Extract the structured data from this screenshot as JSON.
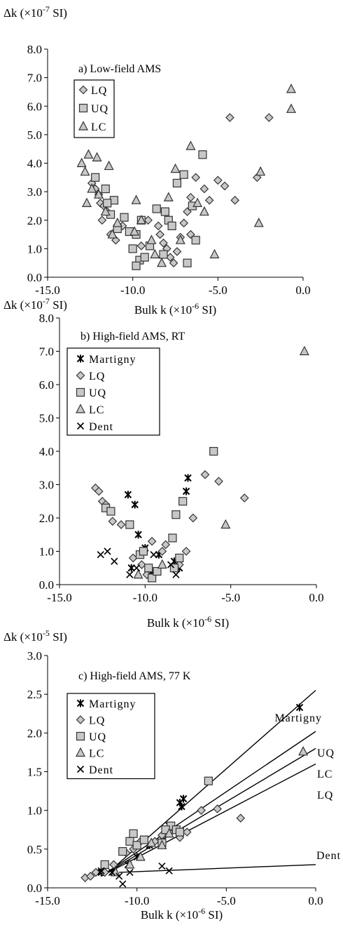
{
  "colors": {
    "fill_gray": "#c8c8c8",
    "stroke": "#333333",
    "line": "#000000"
  },
  "chart_data": [
    {
      "type": "scatter",
      "title": "a) Low-field AMS",
      "ylabel_prefix": "Δk (×10",
      "ylabel_exp": "-7",
      "ylabel_suffix": " SI)",
      "xlabel_prefix": "Bulk k (×10",
      "xlabel_exp": "-6",
      "xlabel_suffix": " SI)",
      "xlim": [
        -15,
        0
      ],
      "ylim": [
        0,
        8
      ],
      "xticks": [
        -15,
        -10,
        -5,
        0
      ],
      "xtick_labels": [
        "-15.0",
        "-10.0",
        "-5.0",
        "0.0"
      ],
      "yticks": [
        0,
        1,
        2,
        3,
        4,
        5,
        6,
        7,
        8
      ],
      "ytick_labels": [
        "0.0",
        "1.0",
        "2.0",
        "3.0",
        "4.0",
        "5.0",
        "6.0",
        "7.0",
        "8.0"
      ],
      "legend": "top-left",
      "series": [
        {
          "name": "LQ",
          "marker": "diamond",
          "points": [
            [
              -12.4,
              3.3
            ],
            [
              -12.2,
              3.1
            ],
            [
              -12.0,
              2.9
            ],
            [
              -11.9,
              2.6
            ],
            [
              -11.7,
              2.5
            ],
            [
              -11.5,
              2.3
            ],
            [
              -11.8,
              2.0
            ],
            [
              -11.3,
              1.5
            ],
            [
              -11.0,
              1.3
            ],
            [
              -10.6,
              1.8
            ],
            [
              -9.1,
              2.0
            ],
            [
              -8.5,
              1.8
            ],
            [
              -8.4,
              1.5
            ],
            [
              -8.2,
              1.2
            ],
            [
              -8.0,
              1.0
            ],
            [
              -7.8,
              0.7
            ],
            [
              -7.6,
              0.5
            ],
            [
              -7.4,
              0.9
            ],
            [
              -7.2,
              1.4
            ],
            [
              -7.0,
              1.9
            ],
            [
              -6.8,
              2.3
            ],
            [
              -6.6,
              2.8
            ],
            [
              -6.3,
              3.5
            ],
            [
              -5.8,
              3.1
            ],
            [
              -5.5,
              2.7
            ],
            [
              -5.0,
              3.4
            ],
            [
              -4.6,
              3.2
            ],
            [
              -4.0,
              2.7
            ],
            [
              -4.3,
              5.6
            ],
            [
              -2.0,
              5.6
            ],
            [
              -2.7,
              3.5
            ],
            [
              -6.6,
              1.5
            ],
            [
              -9.5,
              1.1
            ]
          ]
        },
        {
          "name": "UQ",
          "marker": "square",
          "points": [
            [
              -12.2,
              3.5
            ],
            [
              -11.6,
              3.1
            ],
            [
              -11.1,
              2.7
            ],
            [
              -11.3,
              2.2
            ],
            [
              -10.5,
              2.1
            ],
            [
              -10.9,
              1.7
            ],
            [
              -10.2,
              1.6
            ],
            [
              -9.8,
              1.5
            ],
            [
              -10.0,
              1.0
            ],
            [
              -9.6,
              0.6
            ],
            [
              -9.8,
              0.4
            ],
            [
              -9.3,
              0.7
            ],
            [
              -9.0,
              1.1
            ],
            [
              -8.6,
              2.4
            ],
            [
              -8.1,
              2.3
            ],
            [
              -7.9,
              2.0
            ],
            [
              -7.7,
              1.8
            ],
            [
              -7.4,
              3.3
            ],
            [
              -7.0,
              3.6
            ],
            [
              -6.5,
              2.5
            ],
            [
              -6.3,
              1.3
            ],
            [
              -6.8,
              0.5
            ],
            [
              -5.9,
              4.3
            ],
            [
              -9.5,
              2.0
            ],
            [
              -8.2,
              0.8
            ],
            [
              -11.5,
              2.6
            ]
          ]
        },
        {
          "name": "LC",
          "marker": "triangle",
          "points": [
            [
              -13.0,
              4.0
            ],
            [
              -12.6,
              4.3
            ],
            [
              -12.1,
              4.2
            ],
            [
              -12.8,
              3.7
            ],
            [
              -12.4,
              3.1
            ],
            [
              -12.0,
              2.9
            ],
            [
              -11.6,
              2.3
            ],
            [
              -11.2,
              1.5
            ],
            [
              -10.9,
              1.9
            ],
            [
              -11.4,
              3.9
            ],
            [
              -9.8,
              2.7
            ],
            [
              -9.5,
              2.0
            ],
            [
              -8.9,
              1.3
            ],
            [
              -8.7,
              0.8
            ],
            [
              -8.3,
              0.5
            ],
            [
              -7.9,
              2.8
            ],
            [
              -7.5,
              3.8
            ],
            [
              -7.2,
              1.3
            ],
            [
              -6.6,
              4.6
            ],
            [
              -6.2,
              2.6
            ],
            [
              -5.8,
              2.3
            ],
            [
              -5.2,
              0.8
            ],
            [
              -2.6,
              1.9
            ],
            [
              -2.5,
              3.7
            ],
            [
              -0.7,
              6.6
            ],
            [
              -0.7,
              5.9
            ],
            [
              -12.7,
              2.6
            ],
            [
              -9.9,
              1.6
            ]
          ]
        }
      ]
    },
    {
      "type": "scatter",
      "title": "b) High-field AMS, RT",
      "ylabel_prefix": "Δk (×10",
      "ylabel_exp": "-7",
      "ylabel_suffix": " SI)",
      "xlabel_prefix": "Bulk k (×10",
      "xlabel_exp": "-6",
      "xlabel_suffix": " SI)",
      "xlim": [
        -15,
        0
      ],
      "ylim": [
        0,
        8
      ],
      "xticks": [
        -15,
        -10,
        -5,
        0
      ],
      "xtick_labels": [
        "-15.0",
        "-10.0",
        "-5.0",
        "0.0"
      ],
      "yticks": [
        0,
        1,
        2,
        3,
        4,
        5,
        6,
        7,
        8
      ],
      "ytick_labels": [
        "0.0",
        "1.0",
        "2.0",
        "3.0",
        "4.0",
        "5.0",
        "6.0",
        "7.0",
        "8.0"
      ],
      "legend": "top-left",
      "series": [
        {
          "name": "Martigny",
          "marker": "star",
          "points": [
            [
              -11.0,
              2.7
            ],
            [
              -10.6,
              2.4
            ],
            [
              -10.4,
              1.5
            ],
            [
              -10.0,
              1.1
            ],
            [
              -9.6,
              0.4
            ],
            [
              -7.6,
              2.8
            ],
            [
              -7.5,
              3.2
            ],
            [
              -8.3,
              0.7
            ],
            [
              -8.0,
              0.5
            ],
            [
              -9.2,
              0.9
            ],
            [
              -10.8,
              0.5
            ]
          ]
        },
        {
          "name": "LQ",
          "marker": "diamond",
          "points": [
            [
              -12.9,
              2.9
            ],
            [
              -12.7,
              2.8
            ],
            [
              -12.5,
              2.5
            ],
            [
              -12.3,
              2.4
            ],
            [
              -11.9,
              1.9
            ],
            [
              -11.4,
              1.8
            ],
            [
              -10.7,
              0.8
            ],
            [
              -10.2,
              0.6
            ],
            [
              -9.6,
              1.3
            ],
            [
              -9.0,
              1.0
            ],
            [
              -8.8,
              1.2
            ],
            [
              -8.0,
              0.6
            ],
            [
              -7.6,
              1.0
            ],
            [
              -7.2,
              2.0
            ],
            [
              -6.5,
              3.3
            ],
            [
              -5.7,
              3.1
            ],
            [
              -4.2,
              2.6
            ],
            [
              -9.9,
              0.3
            ]
          ]
        },
        {
          "name": "UQ",
          "marker": "square",
          "points": [
            [
              -12.3,
              2.3
            ],
            [
              -12.0,
              2.2
            ],
            [
              -10.9,
              1.8
            ],
            [
              -10.3,
              0.9
            ],
            [
              -10.1,
              1.0
            ],
            [
              -9.8,
              0.5
            ],
            [
              -9.6,
              0.2
            ],
            [
              -9.3,
              0.4
            ],
            [
              -8.4,
              1.4
            ],
            [
              -8.2,
              2.1
            ],
            [
              -8.0,
              0.8
            ],
            [
              -7.8,
              2.5
            ],
            [
              -6.0,
              4.0
            ],
            [
              -8.3,
              0.5
            ]
          ]
        },
        {
          "name": "LC",
          "marker": "triangle",
          "points": [
            [
              -10.4,
              0.3
            ],
            [
              -9.0,
              0.6
            ],
            [
              -5.3,
              1.8
            ],
            [
              -0.7,
              7.0
            ]
          ]
        },
        {
          "name": "Dent",
          "marker": "x",
          "points": [
            [
              -12.6,
              0.9
            ],
            [
              -12.2,
              1.0
            ],
            [
              -11.8,
              0.7
            ],
            [
              -10.9,
              0.3
            ],
            [
              -10.5,
              0.5
            ],
            [
              -9.5,
              0.9
            ],
            [
              -8.5,
              0.6
            ],
            [
              -8.2,
              0.3
            ]
          ]
        }
      ]
    },
    {
      "type": "scatter",
      "title": "c) High-field AMS, 77 K",
      "ylabel_prefix": "Δk (×10",
      "ylabel_exp": "-5",
      "ylabel_suffix": " SI)",
      "xlabel_prefix": "Bulk k (×10",
      "xlabel_exp": "-6",
      "xlabel_suffix": " SI)",
      "xlim": [
        -15,
        0
      ],
      "ylim": [
        0,
        3
      ],
      "xticks": [
        -15,
        -10,
        -5,
        0
      ],
      "xtick_labels": [
        "-15.0",
        "-10.0",
        "-5.0",
        "0.0"
      ],
      "yticks": [
        0,
        0.5,
        1,
        1.5,
        2,
        2.5,
        3
      ],
      "ytick_labels": [
        "0.0",
        "0.5",
        "1.0",
        "1.5",
        "2.0",
        "2.5",
        "3.0"
      ],
      "legend": "top-left",
      "series": [
        {
          "name": "Martigny",
          "marker": "star",
          "points": [
            [
              -12.0,
              0.2
            ],
            [
              -11.3,
              0.2
            ],
            [
              -10.5,
              0.3
            ],
            [
              -10.0,
              0.4
            ],
            [
              -9.3,
              0.55
            ],
            [
              -8.6,
              0.65
            ],
            [
              -8.2,
              0.8
            ],
            [
              -7.6,
              1.1
            ],
            [
              -7.4,
              1.15
            ],
            [
              -7.5,
              1.05
            ],
            [
              -0.9,
              2.33
            ]
          ]
        },
        {
          "name": "LQ",
          "marker": "diamond",
          "points": [
            [
              -12.9,
              0.13
            ],
            [
              -12.6,
              0.15
            ],
            [
              -12.3,
              0.2
            ],
            [
              -11.8,
              0.2
            ],
            [
              -11.3,
              0.3
            ],
            [
              -10.6,
              0.45
            ],
            [
              -10.2,
              0.5
            ],
            [
              -9.8,
              0.6
            ],
            [
              -9.0,
              0.6
            ],
            [
              -8.6,
              0.68
            ],
            [
              -8.2,
              0.72
            ],
            [
              -7.6,
              0.65
            ],
            [
              -7.2,
              0.72
            ],
            [
              -6.4,
              1.0
            ],
            [
              -5.5,
              1.02
            ],
            [
              -4.2,
              0.9
            ]
          ]
        },
        {
          "name": "UQ",
          "marker": "square",
          "points": [
            [
              -11.8,
              0.3
            ],
            [
              -10.8,
              0.47
            ],
            [
              -10.4,
              0.6
            ],
            [
              -10.2,
              0.7
            ],
            [
              -10.0,
              0.55
            ],
            [
              -9.6,
              0.62
            ],
            [
              -8.6,
              0.58
            ],
            [
              -8.1,
              0.8
            ],
            [
              -7.8,
              0.75
            ],
            [
              -7.6,
              0.72
            ],
            [
              -8.4,
              0.75
            ],
            [
              -6.0,
              1.38
            ]
          ]
        },
        {
          "name": "LC",
          "marker": "triangle",
          "points": [
            [
              -11.2,
              0.2
            ],
            [
              -10.4,
              0.3
            ],
            [
              -9.8,
              0.4
            ],
            [
              -9.2,
              0.58
            ],
            [
              -8.6,
              0.55
            ],
            [
              -8.2,
              0.7
            ],
            [
              -0.7,
              1.76
            ]
          ]
        },
        {
          "name": "Dent",
          "marker": "x",
          "points": [
            [
              -12.0,
              0.22
            ],
            [
              -11.4,
              0.2
            ],
            [
              -11.0,
              0.15
            ],
            [
              -10.8,
              0.05
            ],
            [
              -10.4,
              0.2
            ],
            [
              -8.6,
              0.28
            ],
            [
              -8.2,
              0.22
            ]
          ]
        }
      ],
      "fit_lines": [
        {
          "name": "Martigny",
          "from": [
            -11.6,
            0.2
          ],
          "to": [
            0.0,
            2.55
          ]
        },
        {
          "name": "UQ",
          "from": [
            -12.0,
            0.15
          ],
          "to": [
            0.0,
            2.02
          ]
        },
        {
          "name": "LC",
          "from": [
            -12.0,
            0.15
          ],
          "to": [
            0.0,
            1.8
          ]
        },
        {
          "name": "LQ",
          "from": [
            -12.0,
            0.15
          ],
          "to": [
            0.0,
            1.6
          ]
        },
        {
          "name": "Dent",
          "from": [
            -11.0,
            0.2
          ],
          "to": [
            0.0,
            0.3
          ]
        }
      ]
    }
  ]
}
